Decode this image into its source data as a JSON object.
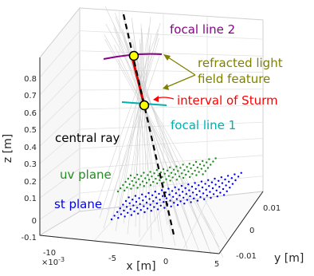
{
  "figure": {
    "annotations": {
      "focal_line_2": "focal line 2",
      "refracted_l1": "refracted light",
      "refracted_l2": "field feature",
      "interval_sturm": "interval of Sturm",
      "focal_line_1": "focal line 1",
      "central_ray": "central ray",
      "uv_plane": "uv plane",
      "st_plane": "st plane"
    },
    "colors": {
      "focal_line_2": "#8b008b",
      "refracted": "#808000",
      "interval": "#ff0000",
      "focal_line_1": "#00b0b0",
      "central_ray": "#000000",
      "uv_plane": "#228b22",
      "st_plane": "#0000ee",
      "marker_fill": "#ffff00"
    },
    "axes": {
      "z_label": "z [m]",
      "x_label": "x [m]",
      "y_label": "y [m]",
      "x_exponent": "×10",
      "x_exponent_power": "-3",
      "z_ticks": [
        "0.8",
        "0.7",
        "0.6",
        "0.5",
        "0.4",
        "0.3",
        "0.2",
        "0.1",
        "0",
        "-0.1"
      ],
      "x_ticks": [
        "-10",
        "-5",
        "0",
        "5"
      ],
      "y_ticks": [
        "0.01",
        "0",
        "-0.01"
      ]
    }
  }
}
